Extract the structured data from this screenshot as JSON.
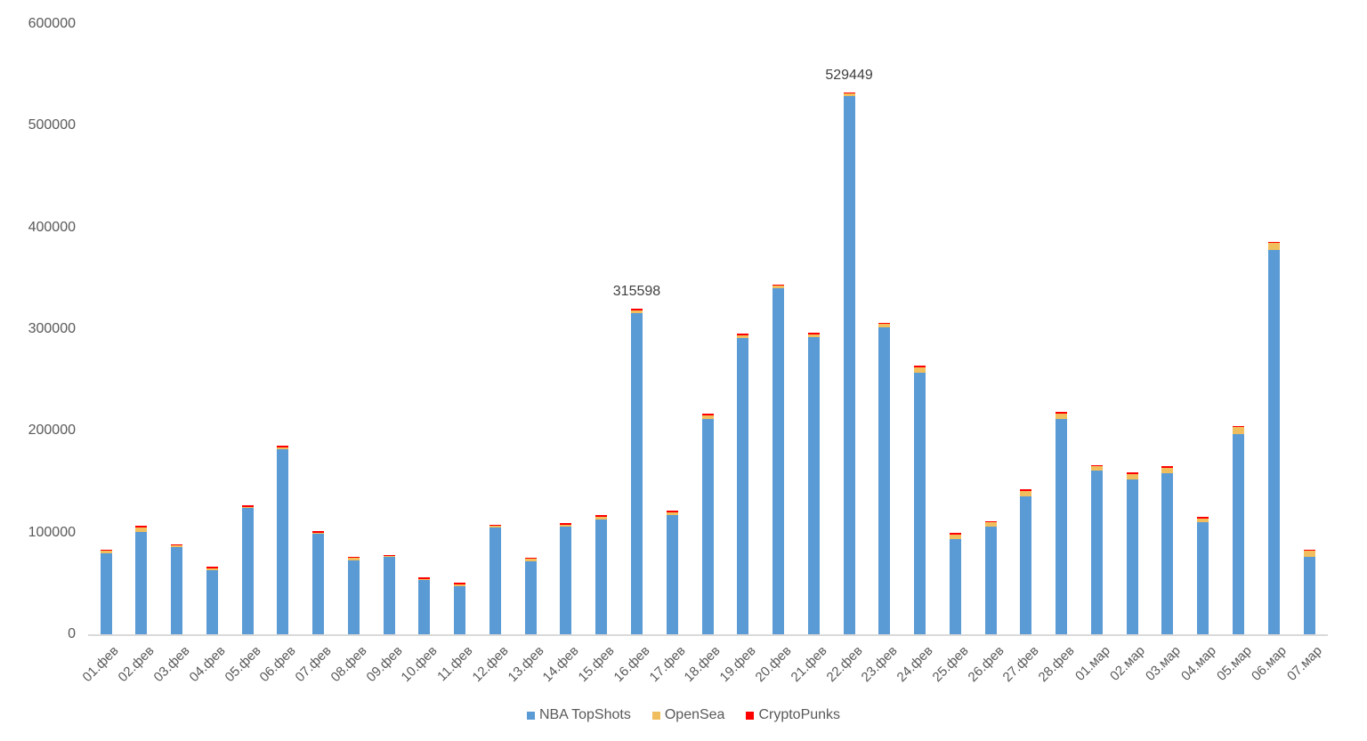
{
  "chart_data": {
    "type": "bar",
    "stacked": true,
    "title": "",
    "xlabel": "",
    "ylabel": "",
    "ylim": [
      0,
      600000
    ],
    "yticks": [
      "0",
      "100000",
      "200000",
      "300000",
      "400000",
      "500000",
      "600000"
    ],
    "grid": false,
    "legend_position": "bottom",
    "categories": [
      "01.фев",
      "02.фев",
      "03.фев",
      "04.фев",
      "05.фев",
      "06.фев",
      "07.фев",
      "08.фев",
      "09.фев",
      "10.фев",
      "11.фев",
      "12.фев",
      "13.фев",
      "14.фев",
      "15.фев",
      "16.фев",
      "17.фев",
      "18.фев",
      "19.фев",
      "20.фев",
      "21.фев",
      "22.фев",
      "23.фев",
      "24.фев",
      "25.фев",
      "26.фев",
      "27.фев",
      "28.фев",
      "01.мар",
      "02.мар",
      "03.мар",
      "04.мар",
      "05.мар",
      "06.мар",
      "07.мар"
    ],
    "series": [
      {
        "name": "NBA TopShots",
        "color": "#5b9bd5",
        "values": [
          80000,
          101000,
          86000,
          63000,
          124000,
          182000,
          99000,
          73000,
          76000,
          53000,
          47000,
          105000,
          72000,
          106000,
          113000,
          315598,
          117000,
          212000,
          291000,
          340000,
          292000,
          529449,
          302000,
          257000,
          94000,
          106000,
          136000,
          212000,
          161000,
          152000,
          158000,
          110000,
          197000,
          378000,
          76000
        ]
      },
      {
        "name": "OpenSea",
        "color": "#f0be5c",
        "values": [
          2000,
          4000,
          1500,
          2000,
          1000,
          1500,
          1000,
          2000,
          1000,
          1500,
          2000,
          1500,
          2000,
          2000,
          2500,
          3000,
          3000,
          3000,
          3000,
          2500,
          3000,
          2000,
          3000,
          5500,
          4000,
          4000,
          5000,
          5000,
          4000,
          5500,
          5500,
          4000,
          6500,
          6500,
          6000
        ]
      },
      {
        "name": "CryptoPunks",
        "color": "#ff0000",
        "values": [
          1500,
          1500,
          1000,
          1500,
          1500,
          1500,
          1500,
          1500,
          1000,
          1500,
          1500,
          1500,
          1500,
          1500,
          1500,
          1500,
          1500,
          1500,
          1500,
          1500,
          1500,
          1500,
          1000,
          1500,
          1500,
          1500,
          1500,
          1500,
          1500,
          1500,
          1500,
          1500,
          1500,
          1500,
          1500
        ]
      }
    ],
    "annotations": [
      {
        "category": "16.фев",
        "text": "315598"
      },
      {
        "category": "22.фев",
        "text": "529449"
      }
    ]
  },
  "legend": [
    {
      "label": "NBA TopShots",
      "color": "#5b9bd5"
    },
    {
      "label": "OpenSea",
      "color": "#f0be5c"
    },
    {
      "label": "CryptoPunks",
      "color": "#ff0000"
    }
  ]
}
